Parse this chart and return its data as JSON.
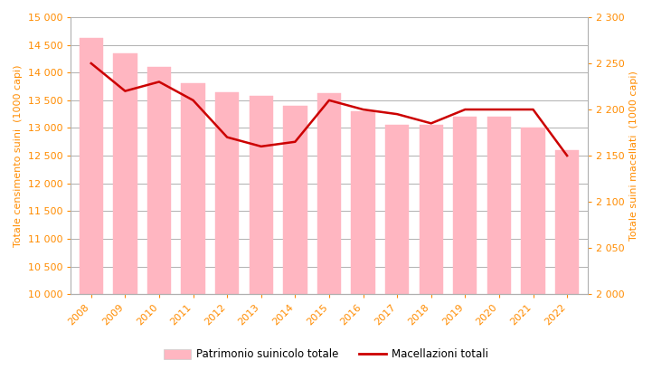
{
  "years": [
    2008,
    2009,
    2010,
    2011,
    2012,
    2013,
    2014,
    2015,
    2016,
    2017,
    2018,
    2019,
    2020,
    2021,
    2022
  ],
  "bar_values": [
    14620,
    14350,
    14100,
    13800,
    13650,
    13580,
    13400,
    13620,
    13300,
    13050,
    13050,
    13200,
    13200,
    13000,
    12600
  ],
  "line_values": [
    2250,
    2220,
    2230,
    2210,
    2170,
    2160,
    2165,
    2210,
    2200,
    2195,
    2185,
    2200,
    2200,
    2200,
    2150
  ],
  "bar_color": "#FFB6C1",
  "bar_edgecolor": "#FFB6C1",
  "line_color": "#CC0000",
  "tick_color": "#FF8C00",
  "ylabel_left": "Totale censimento suini  (1000 capi)",
  "ylabel_right": "Totale suini macellati  (1000 capi)",
  "ylim_left": [
    10000,
    15000
  ],
  "ylim_right": [
    2000,
    2300
  ],
  "yticks_left": [
    10000,
    10500,
    11000,
    11500,
    12000,
    12500,
    13000,
    13500,
    14000,
    14500,
    15000
  ],
  "yticks_right": [
    2000,
    2050,
    2100,
    2150,
    2200,
    2250,
    2300
  ],
  "legend_bar": "Patrimonio suinicolo totale",
  "legend_line": "Macellazioni totali",
  "background_color": "#ffffff",
  "grid_color": "#b0b0b0"
}
